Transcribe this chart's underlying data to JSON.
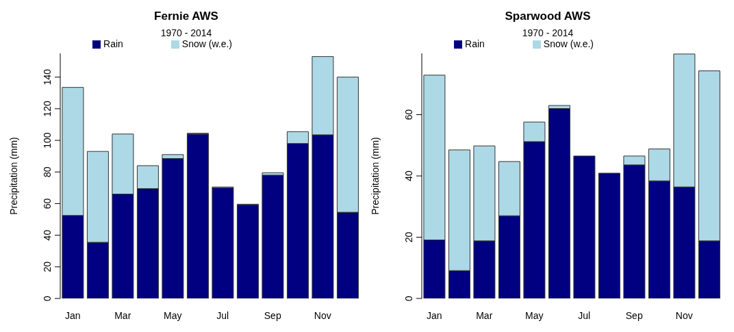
{
  "chart_data": [
    {
      "type": "bar",
      "title": "Fernie AWS",
      "subtitle": "1970 - 2014",
      "ylabel": "Precipitation (mm)",
      "categories": [
        "Jan",
        null,
        "Mar",
        null,
        "May",
        null,
        "Jul",
        null,
        "Sep",
        null,
        "Nov",
        null
      ],
      "stacked": true,
      "legend": "top",
      "ylim": [
        0,
        155
      ],
      "yticks": [
        0,
        20,
        40,
        60,
        80,
        100,
        120,
        140
      ],
      "series": [
        {
          "name": "Rain",
          "color": "#000080",
          "values": [
            52.5,
            35.5,
            66,
            69.5,
            88.5,
            104,
            70,
            59.3,
            78,
            98,
            103.5,
            54.5
          ]
        },
        {
          "name": "Snow (w.e.)",
          "color": "#add8e6",
          "values": [
            81,
            57.5,
            38,
            14.5,
            2.5,
            0.5,
            0.5,
            0.3,
            1.5,
            7.5,
            49.5,
            85.5
          ]
        }
      ]
    },
    {
      "type": "bar",
      "title": "Sparwood AWS",
      "subtitle": "1970 - 2014",
      "ylabel": "Precipitation (mm)",
      "categories": [
        "Jan",
        null,
        "Mar",
        null,
        "May",
        null,
        "Jul",
        null,
        "Sep",
        null,
        "Nov",
        null
      ],
      "stacked": true,
      "legend": "top",
      "ylim": [
        0,
        80
      ],
      "yticks": [
        0,
        20,
        40,
        60
      ],
      "series": [
        {
          "name": "Rain",
          "color": "#000080",
          "values": [
            19.1,
            9.1,
            18.8,
            27,
            51.2,
            62,
            46.5,
            40.9,
            43.6,
            38.4,
            36.4,
            18.8
          ]
        },
        {
          "name": "Snow (w.e.)",
          "color": "#add8e6",
          "values": [
            53.8,
            39.4,
            31,
            17.7,
            6.4,
            1,
            0,
            0,
            2.9,
            10.4,
            43.4,
            55.5
          ]
        }
      ]
    }
  ]
}
